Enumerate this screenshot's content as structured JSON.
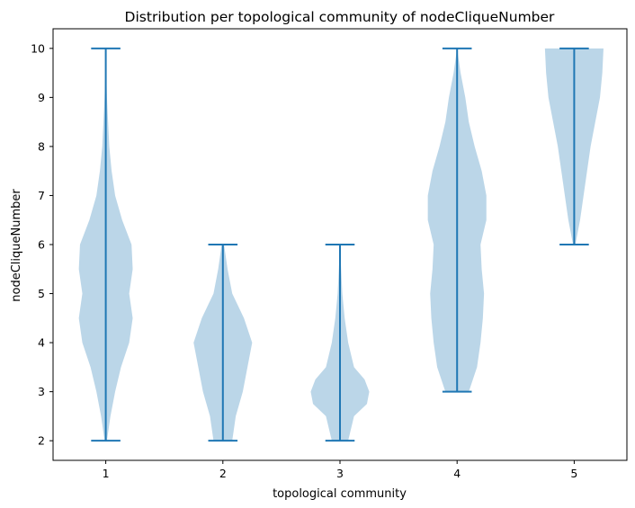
{
  "chart_data": {
    "type": "violin",
    "title": "Distribution per topological community of nodeCliqueNumber",
    "xlabel": "topological community",
    "ylabel": "nodeCliqueNumber",
    "categories": [
      "1",
      "2",
      "3",
      "4",
      "5"
    ],
    "x_ticks": [
      1,
      2,
      3,
      4,
      5
    ],
    "xlim": [
      0.55,
      5.45
    ],
    "ylim": [
      1.6,
      10.4
    ],
    "y_ticks": [
      2,
      3,
      4,
      5,
      6,
      7,
      8,
      9,
      10
    ],
    "grid": false,
    "legend": "none",
    "colors": {
      "body": "#1f77b4",
      "body_alpha": 0.3,
      "lines": "#1f77b4"
    },
    "violins": [
      {
        "category": "1",
        "min": 2,
        "max": 10,
        "profile": [
          [
            2,
            0.01
          ],
          [
            2.5,
            0.04
          ],
          [
            3,
            0.08
          ],
          [
            3.5,
            0.13
          ],
          [
            4,
            0.2
          ],
          [
            4.5,
            0.23
          ],
          [
            5,
            0.2
          ],
          [
            5.5,
            0.23
          ],
          [
            6,
            0.22
          ],
          [
            6.5,
            0.14
          ],
          [
            7,
            0.08
          ],
          [
            7.5,
            0.05
          ],
          [
            8,
            0.03
          ],
          [
            8.5,
            0.02
          ],
          [
            9,
            0.01
          ],
          [
            9.5,
            0.004
          ],
          [
            10,
            0.0
          ]
        ]
      },
      {
        "category": "2",
        "min": 2,
        "max": 6,
        "profile": [
          [
            2,
            0.08
          ],
          [
            2.5,
            0.11
          ],
          [
            3,
            0.17
          ],
          [
            3.5,
            0.21
          ],
          [
            4,
            0.25
          ],
          [
            4.5,
            0.18
          ],
          [
            5,
            0.08
          ],
          [
            5.5,
            0.04
          ],
          [
            6,
            0.01
          ]
        ]
      },
      {
        "category": "3",
        "min": 2,
        "max": 6,
        "profile": [
          [
            2,
            0.07
          ],
          [
            2.5,
            0.12
          ],
          [
            2.75,
            0.23
          ],
          [
            3,
            0.25
          ],
          [
            3.25,
            0.21
          ],
          [
            3.5,
            0.12
          ],
          [
            4,
            0.07
          ],
          [
            4.5,
            0.04
          ],
          [
            5,
            0.02
          ],
          [
            5.5,
            0.01
          ],
          [
            6,
            0.0
          ]
        ]
      },
      {
        "category": "4",
        "min": 3,
        "max": 10,
        "profile": [
          [
            3,
            0.1
          ],
          [
            3.5,
            0.17
          ],
          [
            4,
            0.2
          ],
          [
            4.5,
            0.22
          ],
          [
            5,
            0.23
          ],
          [
            5.5,
            0.21
          ],
          [
            6,
            0.2
          ],
          [
            6.5,
            0.25
          ],
          [
            7,
            0.25
          ],
          [
            7.5,
            0.21
          ],
          [
            8,
            0.15
          ],
          [
            8.5,
            0.1
          ],
          [
            9,
            0.07
          ],
          [
            9.5,
            0.03
          ],
          [
            10,
            0.0
          ]
        ]
      },
      {
        "category": "5",
        "min": 6,
        "max": 10,
        "profile": [
          [
            6,
            0.01
          ],
          [
            6.5,
            0.05
          ],
          [
            7,
            0.08
          ],
          [
            7.5,
            0.11
          ],
          [
            8,
            0.14
          ],
          [
            8.5,
            0.18
          ],
          [
            9,
            0.22
          ],
          [
            9.5,
            0.24
          ],
          [
            10,
            0.25
          ]
        ]
      }
    ]
  }
}
